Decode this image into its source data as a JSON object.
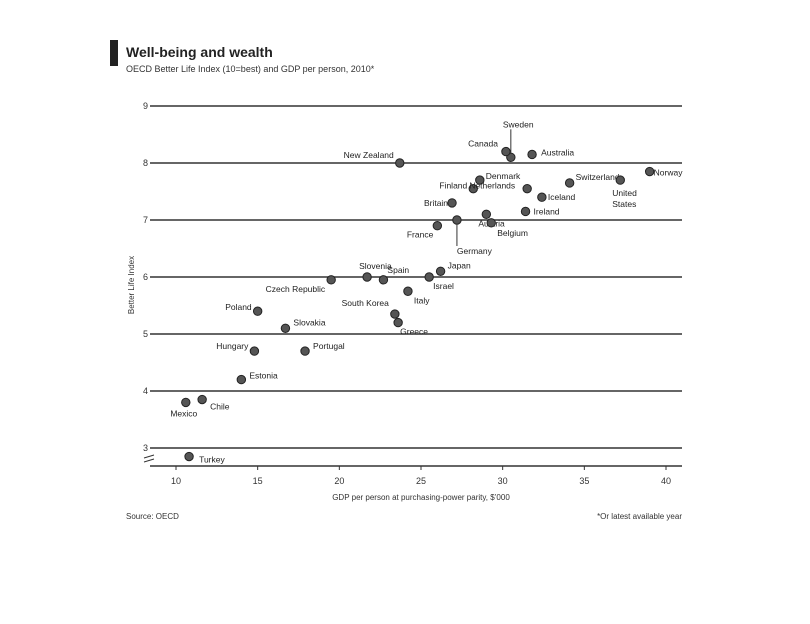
{
  "header": {
    "title": "Well-being and wealth",
    "subtitle": "OECD Better Life Index (10=best) and GDP per person, 2010*"
  },
  "footer": {
    "source": "Source: OECD",
    "footnote": "*Or latest available year"
  },
  "chart_data": {
    "type": "scatter",
    "title": "Well-being and wealth",
    "subtitle": "OECD Better Life Index (10=best) and GDP per person, 2010*",
    "xlabel": "GDP per person at purchasing-power parity, $’000",
    "ylabel": "Better Life Index",
    "xlim": [
      10,
      40
    ],
    "ylim": [
      2.7,
      9
    ],
    "x_ticks": [
      "10",
      "15",
      "20",
      "25",
      "30",
      "35",
      "40"
    ],
    "y_ticks": [
      "3",
      "4",
      "5",
      "6",
      "7",
      "8",
      "9"
    ],
    "axis_break": true,
    "grid": true,
    "points": [
      {
        "name": "Mexico",
        "x": 10.6,
        "y": 3.8
      },
      {
        "name": "Chile",
        "x": 11.6,
        "y": 3.85
      },
      {
        "name": "Turkey",
        "x": 10.8,
        "y": 2.85
      },
      {
        "name": "Estonia",
        "x": 14.0,
        "y": 4.2
      },
      {
        "name": "Hungary",
        "x": 14.8,
        "y": 4.7
      },
      {
        "name": "Poland",
        "x": 15.0,
        "y": 5.4
      },
      {
        "name": "Slovakia",
        "x": 16.7,
        "y": 5.1
      },
      {
        "name": "Portugal",
        "x": 17.9,
        "y": 4.7
      },
      {
        "name": "Czech Republic",
        "x": 19.5,
        "y": 5.95
      },
      {
        "name": "Slovenia",
        "x": 21.7,
        "y": 6.0
      },
      {
        "name": "Spain",
        "x": 22.7,
        "y": 5.95
      },
      {
        "name": "South Korea",
        "x": 23.4,
        "y": 5.35
      },
      {
        "name": "Greece",
        "x": 23.6,
        "y": 5.2
      },
      {
        "name": "Italy",
        "x": 24.2,
        "y": 5.75
      },
      {
        "name": "Israel",
        "x": 25.5,
        "y": 6.0
      },
      {
        "name": "Japan",
        "x": 26.2,
        "y": 6.1
      },
      {
        "name": "New Zealand",
        "x": 23.7,
        "y": 8.0
      },
      {
        "name": "France",
        "x": 26.0,
        "y": 6.9
      },
      {
        "name": "Germany",
        "x": 27.2,
        "y": 7.0
      },
      {
        "name": "Britain",
        "x": 26.9,
        "y": 7.3
      },
      {
        "name": "Finland",
        "x": 28.2,
        "y": 7.55
      },
      {
        "name": "Denmark",
        "x": 28.6,
        "y": 7.7
      },
      {
        "name": "Austria",
        "x": 29.0,
        "y": 7.1
      },
      {
        "name": "Belgium",
        "x": 29.3,
        "y": 6.95
      },
      {
        "name": "Sweden",
        "x": 30.5,
        "y": 8.1
      },
      {
        "name": "Canada",
        "x": 30.2,
        "y": 8.2
      },
      {
        "name": "Australia",
        "x": 31.8,
        "y": 8.15
      },
      {
        "name": "Netherlands",
        "x": 31.5,
        "y": 7.55
      },
      {
        "name": "Iceland",
        "x": 32.4,
        "y": 7.4
      },
      {
        "name": "Ireland",
        "x": 31.4,
        "y": 7.15
      },
      {
        "name": "Switzerland",
        "x": 34.1,
        "y": 7.65
      },
      {
        "name": "United States",
        "x": 37.2,
        "y": 7.7
      },
      {
        "name": "Norway",
        "x": 39.0,
        "y": 7.85
      }
    ]
  }
}
